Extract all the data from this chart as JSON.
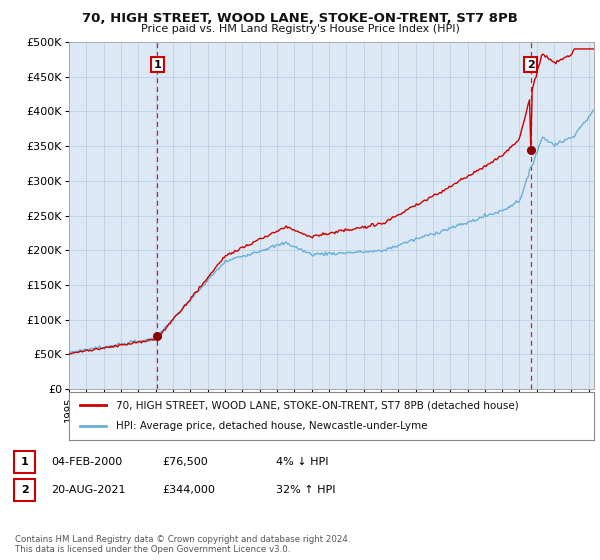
{
  "title": "70, HIGH STREET, WOOD LANE, STOKE-ON-TRENT, ST7 8PB",
  "subtitle": "Price paid vs. HM Land Registry's House Price Index (HPI)",
  "ylim": [
    0,
    500000
  ],
  "yticks": [
    0,
    50000,
    100000,
    150000,
    200000,
    250000,
    300000,
    350000,
    400000,
    450000,
    500000
  ],
  "ytick_labels": [
    "£0",
    "£50K",
    "£100K",
    "£150K",
    "£200K",
    "£250K",
    "£300K",
    "£350K",
    "£400K",
    "£450K",
    "£500K"
  ],
  "hpi_color": "#6baed6",
  "price_color": "#cc0000",
  "marker_color": "#8b0000",
  "vline_color": "#cc0000",
  "background_color": "#ffffff",
  "plot_bg_color": "#dce9f5",
  "grid_color": "#c0d4e8",
  "legend_label_price": "70, HIGH STREET, WOOD LANE, STOKE-ON-TRENT, ST7 8PB (detached house)",
  "legend_label_hpi": "HPI: Average price, detached house, Newcastle-under-Lyme",
  "annotation1_label": "1",
  "annotation1_date": "04-FEB-2000",
  "annotation1_price": "£76,500",
  "annotation1_pct": "4% ↓ HPI",
  "annotation2_label": "2",
  "annotation2_date": "20-AUG-2021",
  "annotation2_price": "£344,000",
  "annotation2_pct": "32% ↑ HPI",
  "footnote": "Contains HM Land Registry data © Crown copyright and database right 2024.\nThis data is licensed under the Open Government Licence v3.0.",
  "sale1_x": 2000.09,
  "sale1_y": 76500,
  "sale2_x": 2021.64,
  "sale2_y": 344000,
  "vline1_x": 2000.09,
  "vline2_x": 2021.64,
  "xlim_left": 1995.0,
  "xlim_right": 2025.3
}
